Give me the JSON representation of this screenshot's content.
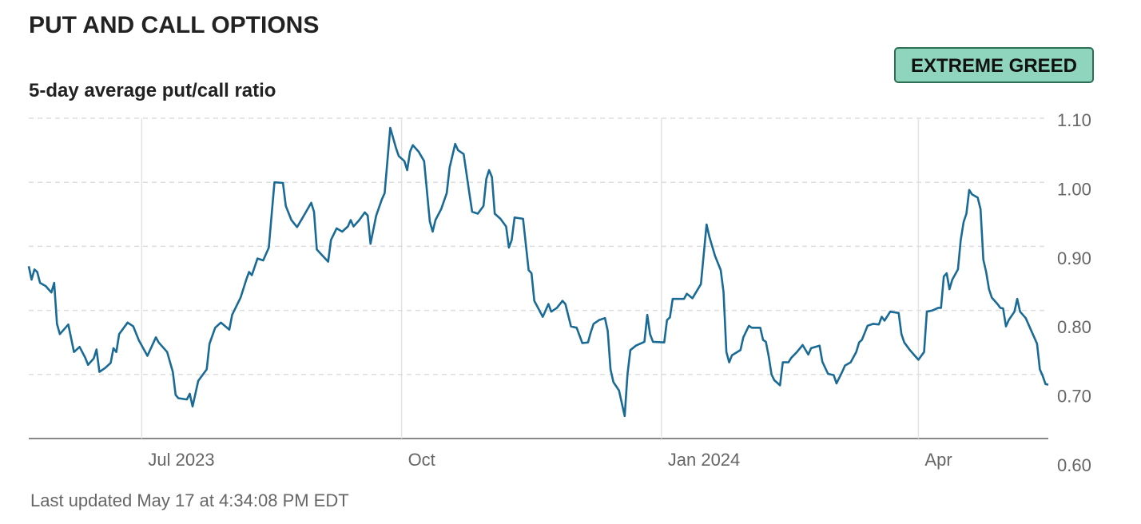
{
  "chart_data": {
    "type": "line",
    "title": "PUT AND CALL OPTIONS",
    "subtitle": "5-day average put/call ratio",
    "annotation": "EXTREME GREED",
    "note": "Last updated May 17 at 4:34:08 PM EDT",
    "color": "#1a6a96",
    "grid": true,
    "xlim": [
      0,
      361
    ],
    "xticks": [
      {
        "value": 40,
        "label": "Jul 2023"
      },
      {
        "value": 132,
        "label": "Oct"
      },
      {
        "value": 224,
        "label": "Jan 2024"
      },
      {
        "value": 315,
        "label": "Apr"
      }
    ],
    "ylim": [
      0.6,
      1.1
    ],
    "yticks": [
      {
        "value": 0.6,
        "label": "0.60"
      },
      {
        "value": 0.7,
        "label": "0.70"
      },
      {
        "value": 0.8,
        "label": "0.80"
      },
      {
        "value": 0.9,
        "label": "0.90"
      },
      {
        "value": 1.0,
        "label": "1.00"
      },
      {
        "value": 1.1,
        "label": "1.10"
      }
    ],
    "x": [
      0,
      1,
      2,
      3,
      4,
      6,
      7,
      8,
      9,
      10,
      11,
      14,
      16,
      18,
      20,
      21,
      23,
      24,
      25,
      27,
      29,
      30,
      31,
      32,
      35,
      37,
      39,
      42,
      45,
      46,
      49,
      51,
      52,
      53,
      56,
      57,
      58,
      60,
      63,
      64,
      66,
      68,
      71,
      72,
      75,
      77,
      78,
      79,
      81,
      83,
      85,
      86,
      87,
      90,
      91,
      93,
      95,
      97,
      100,
      101,
      102,
      106,
      107,
      109,
      111,
      113,
      114,
      115,
      117,
      119,
      120,
      121,
      123,
      125,
      126,
      128,
      130,
      131,
      133,
      134,
      135,
      136,
      138,
      140,
      142,
      143,
      144,
      146,
      148,
      149,
      151,
      152,
      154,
      156,
      157,
      159,
      161,
      162,
      163,
      164,
      165,
      167,
      169,
      170,
      171,
      172,
      175,
      177,
      178,
      179,
      182,
      184,
      185,
      187,
      189,
      190,
      192,
      194,
      196,
      198,
      199,
      200,
      202,
      204,
      205,
      206,
      207,
      209,
      211,
      212,
      213,
      215,
      218,
      219,
      220,
      221,
      225,
      226,
      227,
      228,
      229,
      232,
      233,
      235,
      238,
      240,
      241,
      243,
      245,
      246,
      247,
      248,
      249,
      252,
      253,
      255,
      256,
      259,
      260,
      261,
      262,
      263,
      264,
      266,
      267,
      269,
      270,
      272,
      274,
      276,
      277,
      280,
      281,
      283,
      285,
      286,
      288,
      289,
      291,
      293,
      294,
      295,
      297,
      299,
      301,
      302,
      303,
      305,
      308,
      309,
      310,
      312,
      315,
      317,
      318,
      320,
      322,
      323,
      324,
      325,
      326,
      327,
      329,
      330,
      331,
      332,
      333,
      334,
      336,
      337,
      338,
      339,
      340,
      341,
      343,
      344,
      345,
      346,
      347,
      349,
      350,
      351,
      353,
      355,
      357,
      358,
      359,
      360,
      361
    ],
    "values": [
      0.869,
      0.848,
      0.864,
      0.86,
      0.843,
      0.838,
      0.833,
      0.828,
      0.843,
      0.779,
      0.763,
      0.778,
      0.735,
      0.743,
      0.726,
      0.715,
      0.725,
      0.739,
      0.704,
      0.71,
      0.718,
      0.741,
      0.735,
      0.763,
      0.781,
      0.775,
      0.753,
      0.729,
      0.758,
      0.75,
      0.735,
      0.704,
      0.668,
      0.663,
      0.661,
      0.67,
      0.65,
      0.69,
      0.708,
      0.748,
      0.773,
      0.781,
      0.77,
      0.793,
      0.82,
      0.848,
      0.86,
      0.855,
      0.881,
      0.878,
      0.898,
      0.95,
      1.0,
      0.999,
      0.963,
      0.941,
      0.93,
      0.945,
      0.968,
      0.954,
      0.895,
      0.876,
      0.91,
      0.928,
      0.923,
      0.931,
      0.941,
      0.931,
      0.941,
      0.953,
      0.948,
      0.904,
      0.948,
      0.973,
      0.983,
      1.085,
      1.054,
      1.041,
      1.033,
      1.019,
      1.048,
      1.058,
      1.048,
      1.033,
      0.939,
      0.923,
      0.941,
      0.958,
      0.983,
      1.023,
      1.06,
      1.05,
      1.044,
      0.983,
      0.954,
      0.951,
      0.963,
      1.005,
      1.019,
      1.008,
      0.951,
      0.943,
      0.931,
      0.898,
      0.91,
      0.945,
      0.943,
      0.863,
      0.858,
      0.815,
      0.79,
      0.81,
      0.798,
      0.804,
      0.815,
      0.81,
      0.775,
      0.773,
      0.749,
      0.75,
      0.766,
      0.779,
      0.785,
      0.788,
      0.768,
      0.708,
      0.688,
      0.675,
      0.635,
      0.7,
      0.738,
      0.745,
      0.751,
      0.793,
      0.763,
      0.751,
      0.75,
      0.785,
      0.789,
      0.818,
      0.818,
      0.818,
      0.826,
      0.819,
      0.841,
      0.934,
      0.915,
      0.885,
      0.863,
      0.829,
      0.735,
      0.719,
      0.73,
      0.738,
      0.758,
      0.776,
      0.773,
      0.773,
      0.754,
      0.751,
      0.728,
      0.7,
      0.691,
      0.683,
      0.719,
      0.719,
      0.726,
      0.735,
      0.746,
      0.731,
      0.741,
      0.745,
      0.72,
      0.701,
      0.699,
      0.686,
      0.704,
      0.714,
      0.719,
      0.735,
      0.75,
      0.754,
      0.776,
      0.779,
      0.778,
      0.79,
      0.784,
      0.798,
      0.796,
      0.763,
      0.75,
      0.738,
      0.723,
      0.735,
      0.798,
      0.8,
      0.804,
      0.804,
      0.853,
      0.858,
      0.833,
      0.848,
      0.864,
      0.91,
      0.938,
      0.951,
      0.988,
      0.981,
      0.976,
      0.958,
      0.879,
      0.86,
      0.833,
      0.82,
      0.81,
      0.804,
      0.803,
      0.775,
      0.785,
      0.798,
      0.818,
      0.798,
      0.788,
      0.768,
      0.748,
      0.708,
      0.698,
      0.685,
      0.684
    ]
  }
}
